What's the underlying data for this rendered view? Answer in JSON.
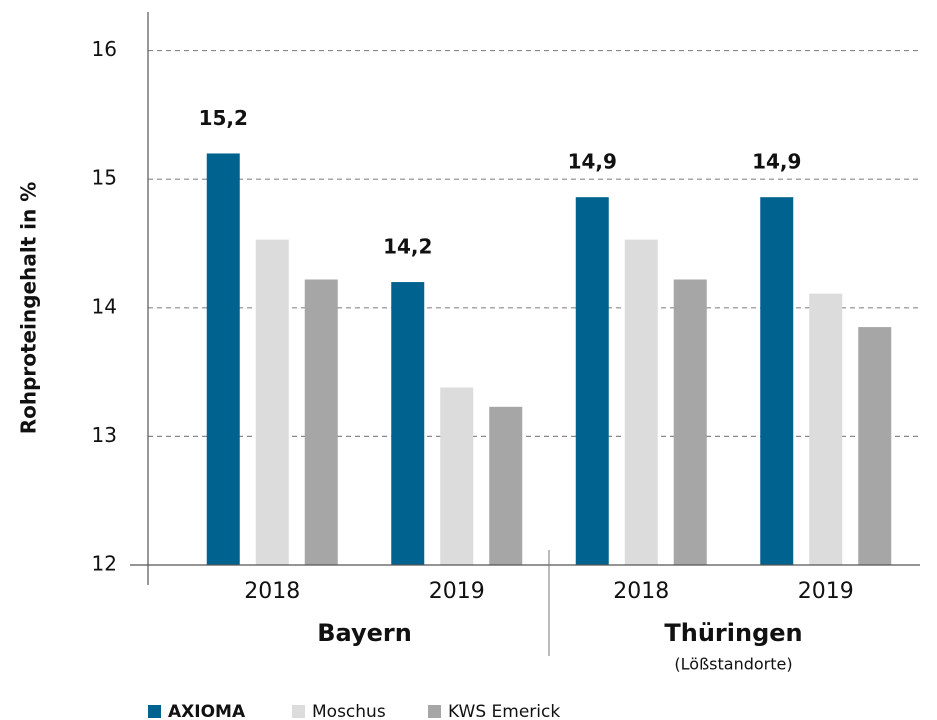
{
  "chart_data": {
    "type": "bar",
    "ylabel": "Rohproteingehalt in %",
    "categories": [
      "2018",
      "2019",
      "2018",
      "2019"
    ],
    "groups": [
      {
        "name": "Bayern"
      },
      {
        "name": "Thüringen",
        "note": "(Lößstandorte)"
      }
    ],
    "series": [
      {
        "name": "AXIOMA",
        "color": "#00628f",
        "values": [
          15.2,
          14.2,
          14.86,
          14.86
        ],
        "value_labels": [
          "15,2",
          "14,2",
          "14,9",
          "14,9"
        ]
      },
      {
        "name": "Moschus",
        "color": "#dcdcdc",
        "values": [
          14.53,
          13.38,
          14.53,
          14.11
        ]
      },
      {
        "name": "KWS Emerick",
        "color": "#a6a6a6",
        "values": [
          14.22,
          13.23,
          14.22,
          13.85
        ]
      }
    ],
    "ylim": [
      12,
      16.3
    ],
    "yticks": [
      12,
      13,
      14,
      15,
      16
    ],
    "grid": true
  }
}
